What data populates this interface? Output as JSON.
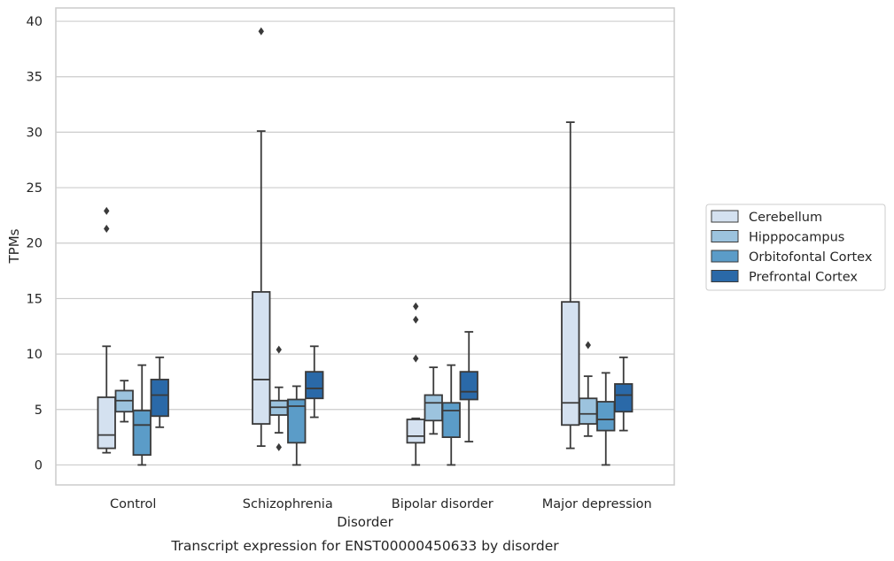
{
  "chart_data": {
    "type": "box",
    "caption": "Transcript expression for ENST00000450633 by disorder",
    "xlabel": "Disorder",
    "ylabel": "TPMs",
    "ylim": [
      -1.8,
      41.2
    ],
    "yticks": [
      0,
      5,
      10,
      15,
      20,
      25,
      30,
      35,
      40
    ],
    "grid": true,
    "legend_position": "right",
    "categories": [
      "Control",
      "Schizophrenia",
      "Bipolar disorder",
      "Major depression"
    ],
    "series": [
      {
        "name": "Cerebellum",
        "color": "#d4e1f0",
        "boxes": [
          {
            "whislo": 1.1,
            "q1": 1.5,
            "med": 2.7,
            "q3": 6.1,
            "whishi": 10.7,
            "fliers": [
              21.3,
              22.9
            ]
          },
          {
            "whislo": 1.7,
            "q1": 3.7,
            "med": 7.7,
            "q3": 15.6,
            "whishi": 30.1,
            "fliers": [
              39.1
            ]
          },
          {
            "whislo": 0.0,
            "q1": 2.0,
            "med": 2.6,
            "q3": 4.1,
            "whishi": 4.2,
            "fliers": [
              9.6,
              13.1,
              14.3
            ]
          },
          {
            "whislo": 1.5,
            "q1": 3.6,
            "med": 5.6,
            "q3": 14.7,
            "whishi": 30.9,
            "fliers": []
          }
        ]
      },
      {
        "name": "Hipppocampus",
        "color": "#9cc3de",
        "boxes": [
          {
            "whislo": 3.9,
            "q1": 4.8,
            "med": 5.8,
            "q3": 6.7,
            "whishi": 7.6,
            "fliers": []
          },
          {
            "whislo": 2.9,
            "q1": 4.5,
            "med": 5.2,
            "q3": 5.8,
            "whishi": 7.0,
            "fliers": [
              1.6,
              10.4
            ]
          },
          {
            "whislo": 2.8,
            "q1": 4.0,
            "med": 5.6,
            "q3": 6.3,
            "whishi": 8.8,
            "fliers": []
          },
          {
            "whislo": 2.6,
            "q1": 3.7,
            "med": 4.6,
            "q3": 6.0,
            "whishi": 8.0,
            "fliers": [
              10.8
            ]
          }
        ]
      },
      {
        "name": "Orbitofontal Cortex",
        "color": "#5b9cc8",
        "boxes": [
          {
            "whislo": 0.0,
            "q1": 0.9,
            "med": 3.6,
            "q3": 4.9,
            "whishi": 9.0,
            "fliers": []
          },
          {
            "whislo": 0.0,
            "q1": 2.0,
            "med": 5.3,
            "q3": 5.9,
            "whishi": 7.1,
            "fliers": []
          },
          {
            "whislo": 0.0,
            "q1": 2.5,
            "med": 4.9,
            "q3": 5.6,
            "whishi": 9.0,
            "fliers": []
          },
          {
            "whislo": 0.0,
            "q1": 3.1,
            "med": 4.1,
            "q3": 5.7,
            "whishi": 8.3,
            "fliers": []
          }
        ]
      },
      {
        "name": "Prefrontal Cortex",
        "color": "#2a69a8",
        "boxes": [
          {
            "whislo": 3.4,
            "q1": 4.4,
            "med": 6.3,
            "q3": 7.7,
            "whishi": 9.7,
            "fliers": []
          },
          {
            "whislo": 4.3,
            "q1": 6.0,
            "med": 6.9,
            "q3": 8.4,
            "whishi": 10.7,
            "fliers": []
          },
          {
            "whislo": 2.1,
            "q1": 5.9,
            "med": 6.6,
            "q3": 8.4,
            "whishi": 12.0,
            "fliers": []
          },
          {
            "whislo": 3.1,
            "q1": 4.8,
            "med": 6.3,
            "q3": 7.3,
            "whishi": 9.7,
            "fliers": []
          }
        ]
      }
    ]
  },
  "style": {
    "edge_color": "#3a3a3a",
    "grid_color": "#cccccc",
    "frame_color": "#cccccc"
  }
}
